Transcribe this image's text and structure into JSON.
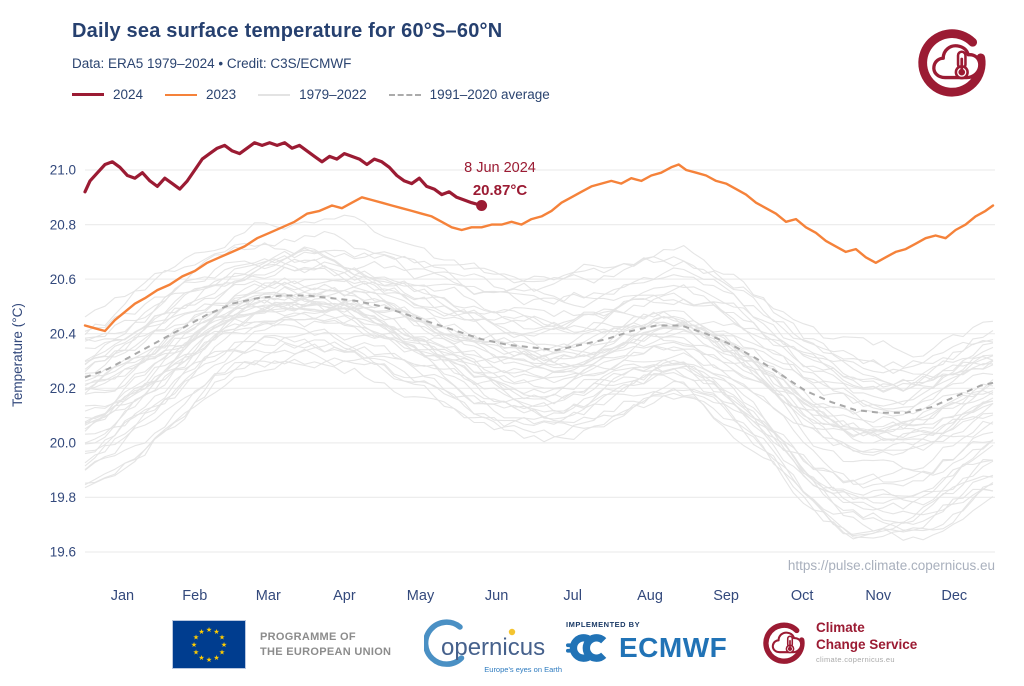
{
  "header": {
    "title": "Daily sea surface temperature for 60°S–60°N",
    "subtitle": "Data: ERA5 1979–2024  •  Credit: C3S/ECMWF"
  },
  "legend": {
    "items": [
      {
        "label": "2024",
        "color": "#9B1B33",
        "style": "solid-thick"
      },
      {
        "label": "2023",
        "color": "#F5823A",
        "style": "solid"
      },
      {
        "label": "1979–2022",
        "color": "#E3E3E3",
        "style": "solid-thin"
      },
      {
        "label": "1991–2020 average",
        "color": "#ABABAB",
        "style": "dashed"
      }
    ]
  },
  "chart_data": {
    "type": "line",
    "title": "Daily sea surface temperature for 60°S–60°N",
    "xlabel": "",
    "ylabel": "Temperature (°C)",
    "ylim": [
      19.55,
      21.15
    ],
    "yticks": [
      21.0,
      20.8,
      20.6,
      20.4,
      20.2,
      20.0,
      19.8,
      19.6
    ],
    "xtick_labels": [
      "Jan",
      "Feb",
      "Mar",
      "Apr",
      "May",
      "Jun",
      "Jul",
      "Aug",
      "Sep",
      "Oct",
      "Nov",
      "Dec"
    ],
    "x_unit": "day_of_year",
    "grid": "horizontal",
    "legend_position": "top-left",
    "watermark": "https://pulse.climate.copernicus.eu",
    "annotation": {
      "date_label": "8 Jun 2024",
      "value_label": "20.87°C",
      "day": 160,
      "value": 20.87
    },
    "series": [
      {
        "name": "2024",
        "color": "#9B1B33",
        "width": 3.2,
        "points": [
          [
            1,
            20.92
          ],
          [
            3,
            20.96
          ],
          [
            6,
            20.99
          ],
          [
            9,
            21.02
          ],
          [
            12,
            21.03
          ],
          [
            15,
            21.01
          ],
          [
            18,
            20.98
          ],
          [
            21,
            20.97
          ],
          [
            24,
            20.99
          ],
          [
            27,
            20.96
          ],
          [
            30,
            20.94
          ],
          [
            33,
            20.97
          ],
          [
            36,
            20.95
          ],
          [
            39,
            20.93
          ],
          [
            42,
            20.96
          ],
          [
            45,
            21.0
          ],
          [
            48,
            21.04
          ],
          [
            51,
            21.06
          ],
          [
            54,
            21.08
          ],
          [
            57,
            21.09
          ],
          [
            60,
            21.07
          ],
          [
            63,
            21.06
          ],
          [
            66,
            21.08
          ],
          [
            69,
            21.1
          ],
          [
            72,
            21.09
          ],
          [
            75,
            21.1
          ],
          [
            78,
            21.09
          ],
          [
            81,
            21.1
          ],
          [
            84,
            21.08
          ],
          [
            87,
            21.09
          ],
          [
            90,
            21.07
          ],
          [
            93,
            21.05
          ],
          [
            96,
            21.03
          ],
          [
            99,
            21.05
          ],
          [
            102,
            21.04
          ],
          [
            105,
            21.06
          ],
          [
            108,
            21.05
          ],
          [
            111,
            21.04
          ],
          [
            114,
            21.02
          ],
          [
            117,
            21.04
          ],
          [
            120,
            21.03
          ],
          [
            123,
            21.01
          ],
          [
            126,
            20.98
          ],
          [
            129,
            20.96
          ],
          [
            132,
            20.95
          ],
          [
            135,
            20.97
          ],
          [
            138,
            20.94
          ],
          [
            141,
            20.93
          ],
          [
            144,
            20.91
          ],
          [
            147,
            20.92
          ],
          [
            150,
            20.9
          ],
          [
            153,
            20.89
          ],
          [
            156,
            20.88
          ],
          [
            160,
            20.87
          ]
        ]
      },
      {
        "name": "2023",
        "color": "#F5823A",
        "width": 2.4,
        "points": [
          [
            1,
            20.43
          ],
          [
            5,
            20.42
          ],
          [
            9,
            20.41
          ],
          [
            13,
            20.45
          ],
          [
            17,
            20.48
          ],
          [
            21,
            20.51
          ],
          [
            25,
            20.53
          ],
          [
            30,
            20.56
          ],
          [
            35,
            20.58
          ],
          [
            40,
            20.61
          ],
          [
            45,
            20.63
          ],
          [
            50,
            20.66
          ],
          [
            55,
            20.68
          ],
          [
            60,
            20.7
          ],
          [
            65,
            20.72
          ],
          [
            70,
            20.75
          ],
          [
            75,
            20.77
          ],
          [
            80,
            20.79
          ],
          [
            85,
            20.81
          ],
          [
            90,
            20.84
          ],
          [
            95,
            20.85
          ],
          [
            100,
            20.87
          ],
          [
            104,
            20.86
          ],
          [
            108,
            20.88
          ],
          [
            112,
            20.9
          ],
          [
            116,
            20.89
          ],
          [
            120,
            20.88
          ],
          [
            124,
            20.87
          ],
          [
            128,
            20.86
          ],
          [
            132,
            20.85
          ],
          [
            136,
            20.84
          ],
          [
            140,
            20.83
          ],
          [
            144,
            20.81
          ],
          [
            148,
            20.79
          ],
          [
            152,
            20.78
          ],
          [
            156,
            20.79
          ],
          [
            160,
            20.79
          ],
          [
            164,
            20.8
          ],
          [
            168,
            20.8
          ],
          [
            172,
            20.81
          ],
          [
            176,
            20.8
          ],
          [
            180,
            20.82
          ],
          [
            184,
            20.83
          ],
          [
            188,
            20.85
          ],
          [
            192,
            20.88
          ],
          [
            196,
            20.9
          ],
          [
            200,
            20.92
          ],
          [
            204,
            20.94
          ],
          [
            208,
            20.95
          ],
          [
            212,
            20.96
          ],
          [
            216,
            20.95
          ],
          [
            220,
            20.97
          ],
          [
            224,
            20.96
          ],
          [
            228,
            20.98
          ],
          [
            232,
            20.99
          ],
          [
            236,
            21.01
          ],
          [
            239,
            21.02
          ],
          [
            242,
            21.0
          ],
          [
            246,
            20.99
          ],
          [
            250,
            20.98
          ],
          [
            254,
            20.96
          ],
          [
            258,
            20.95
          ],
          [
            262,
            20.93
          ],
          [
            266,
            20.91
          ],
          [
            270,
            20.88
          ],
          [
            274,
            20.86
          ],
          [
            278,
            20.84
          ],
          [
            282,
            20.81
          ],
          [
            286,
            20.82
          ],
          [
            290,
            20.79
          ],
          [
            294,
            20.77
          ],
          [
            298,
            20.74
          ],
          [
            302,
            20.72
          ],
          [
            306,
            20.7
          ],
          [
            310,
            20.71
          ],
          [
            314,
            20.68
          ],
          [
            318,
            20.66
          ],
          [
            322,
            20.68
          ],
          [
            326,
            20.7
          ],
          [
            330,
            20.71
          ],
          [
            334,
            20.73
          ],
          [
            338,
            20.75
          ],
          [
            342,
            20.76
          ],
          [
            346,
            20.75
          ],
          [
            350,
            20.78
          ],
          [
            354,
            20.8
          ],
          [
            358,
            20.83
          ],
          [
            362,
            20.85
          ],
          [
            365,
            20.87
          ]
        ]
      },
      {
        "name": "1991–2020 average",
        "color": "#A9A9A9",
        "width": 2,
        "dash": "6 5",
        "points": [
          [
            1,
            20.24
          ],
          [
            10,
            20.27
          ],
          [
            20,
            20.32
          ],
          [
            30,
            20.37
          ],
          [
            40,
            20.42
          ],
          [
            50,
            20.47
          ],
          [
            60,
            20.51
          ],
          [
            70,
            20.53
          ],
          [
            80,
            20.54
          ],
          [
            90,
            20.54
          ],
          [
            100,
            20.53
          ],
          [
            110,
            20.52
          ],
          [
            120,
            20.5
          ],
          [
            130,
            20.47
          ],
          [
            140,
            20.44
          ],
          [
            150,
            20.41
          ],
          [
            160,
            20.38
          ],
          [
            170,
            20.36
          ],
          [
            180,
            20.35
          ],
          [
            190,
            20.34
          ],
          [
            200,
            20.36
          ],
          [
            210,
            20.38
          ],
          [
            220,
            20.41
          ],
          [
            230,
            20.43
          ],
          [
            240,
            20.43
          ],
          [
            250,
            20.4
          ],
          [
            260,
            20.36
          ],
          [
            270,
            20.31
          ],
          [
            280,
            20.25
          ],
          [
            290,
            20.19
          ],
          [
            300,
            20.15
          ],
          [
            310,
            20.12
          ],
          [
            320,
            20.11
          ],
          [
            330,
            20.11
          ],
          [
            340,
            20.13
          ],
          [
            350,
            20.17
          ],
          [
            360,
            20.21
          ],
          [
            365,
            20.22
          ]
        ]
      }
    ],
    "background_series": {
      "name": "1979–2022",
      "color": "#E4E4E4",
      "width": 1.1,
      "year_start": 1979,
      "year_end": 2022,
      "representation": "climatology + per-year offset + per-year seasonal amplitude + smooth noise (individual daily values are not labeled in the source image)",
      "offsets": [
        -0.3,
        -0.27,
        -0.28,
        -0.26,
        -0.18,
        -0.3,
        -0.31,
        -0.27,
        -0.16,
        -0.2,
        -0.26,
        -0.18,
        -0.16,
        -0.21,
        -0.17,
        -0.15,
        -0.1,
        -0.15,
        -0.06,
        0.0,
        -0.12,
        -0.1,
        -0.04,
        0.0,
        0.02,
        0.0,
        0.04,
        0.02,
        0.0,
        -0.04,
        0.04,
        0.07,
        -0.02,
        0.01,
        0.05,
        0.1,
        0.16,
        0.2,
        0.15,
        0.1,
        0.16,
        0.18,
        0.13,
        0.17
      ],
      "amps": [
        1.65,
        1.6,
        1.62,
        1.55,
        1.5,
        1.6,
        1.66,
        1.55,
        1.45,
        1.5,
        1.52,
        1.42,
        1.4,
        1.45,
        1.38,
        1.35,
        1.3,
        1.35,
        1.25,
        1.2,
        1.3,
        1.28,
        1.22,
        1.18,
        1.15,
        1.16,
        1.12,
        1.14,
        1.1,
        1.15,
        1.08,
        1.05,
        1.12,
        1.08,
        1.05,
        1.02,
        1.0,
        1.35,
        1.05,
        1.02,
        1.05,
        1.0,
        1.05,
        1.1
      ],
      "seasonal_mean": 20.33,
      "seed": 11
    }
  },
  "footer": {
    "eu": {
      "line1": "PROGRAMME OF",
      "line2": "THE EUROPEAN UNION"
    },
    "copernicus": {
      "word": "opernicus",
      "tagline": "Europe's eyes on Earth"
    },
    "ecmwf": {
      "kicker": "IMPLEMENTED BY",
      "word": "ECMWF"
    },
    "ccs": {
      "line1": "Climate",
      "line2": "Change Service",
      "tagline": "climate.copernicus.eu"
    }
  },
  "colors": {
    "title": "#26406F",
    "axis_text": "#33497C",
    "line_2024": "#9B1B33",
    "line_2023": "#F5823A",
    "line_hist": "#E4E4E4",
    "line_avg": "#A9A9A9",
    "grid": "#EDEDED",
    "watermark": "#A9B0BD",
    "ecmwf_blue": "#2173B6",
    "eu_blue": "#003D8F"
  }
}
